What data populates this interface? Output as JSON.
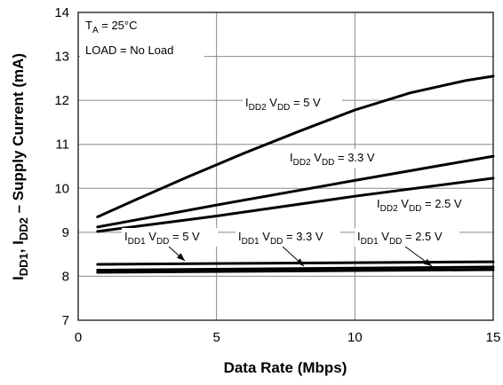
{
  "chart_data": {
    "type": "line",
    "xlabel": "Data Rate (Mbps)",
    "ylabel": {
      "parts": [
        {
          "t": "I",
          "sub": false
        },
        {
          "t": "DD1",
          "sub": true
        },
        {
          "t": ", I",
          "sub": false
        },
        {
          "t": "DD2",
          "sub": true
        },
        {
          "t": " – Supply Current (mA)",
          "sub": false
        }
      ]
    },
    "xlim": [
      0,
      15
    ],
    "ylim": [
      7,
      14
    ],
    "xticks": [
      "0",
      "5",
      "10",
      "15"
    ],
    "yticks": [
      "7",
      "8",
      "9",
      "10",
      "11",
      "12",
      "13",
      "14"
    ],
    "grid": true,
    "conditions": {
      "ta": {
        "main": "T",
        "sub": "A",
        "rest": " = 25°C"
      },
      "load": "LOAD = No Load"
    },
    "series": [
      {
        "label": {
          "i": "I",
          "isub": "DD2",
          "v": " V",
          "vsub": "DD",
          "val": " = 5 V"
        },
        "x": [
          0.7,
          2,
          4,
          6,
          8,
          10,
          12,
          14,
          15
        ],
        "y": [
          9.35,
          9.72,
          10.27,
          10.8,
          11.3,
          11.78,
          12.17,
          12.45,
          12.55
        ]
      },
      {
        "label": {
          "i": "I",
          "isub": "DD2",
          "v": " V",
          "vsub": "DD",
          "val": " = 3.3 V"
        },
        "x": [
          0.7,
          5,
          10,
          15
        ],
        "y": [
          9.12,
          9.62,
          10.18,
          10.73
        ]
      },
      {
        "label": {
          "i": "I",
          "isub": "DD2",
          "v": " V",
          "vsub": "DD",
          "val": " = 2.5 V"
        },
        "x": [
          0.7,
          5,
          10,
          15
        ],
        "y": [
          9.02,
          9.37,
          9.82,
          10.23
        ]
      },
      {
        "label": {
          "i": "I",
          "isub": "DD1",
          "v": " V",
          "vsub": "DD",
          "val": " = 5 V"
        },
        "x": [
          0.7,
          15
        ],
        "y": [
          8.27,
          8.33
        ]
      },
      {
        "label": {
          "i": "I",
          "isub": "DD1",
          "v": " V",
          "vsub": "DD",
          "val": " = 3.3 V"
        },
        "x": [
          0.7,
          15
        ],
        "y": [
          8.14,
          8.21
        ]
      },
      {
        "label": {
          "i": "I",
          "isub": "DD1",
          "v": " V",
          "vsub": "DD",
          "val": " = 2.5 V"
        },
        "x": [
          0.7,
          15
        ],
        "y": [
          8.09,
          8.15
        ]
      }
    ]
  }
}
